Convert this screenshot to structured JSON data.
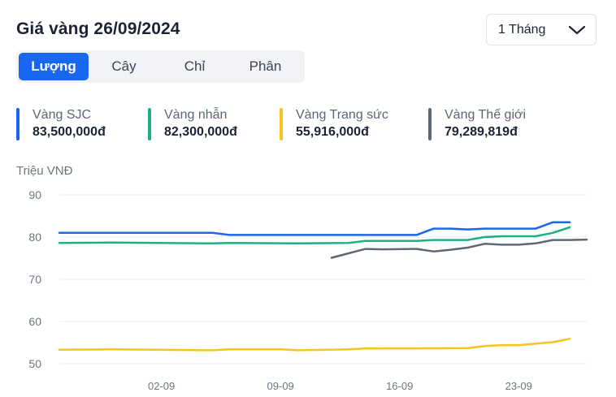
{
  "header": {
    "title": "Giá vàng 26/09/2024"
  },
  "period_select": {
    "value": "1 Tháng",
    "icon": "chevron-down-icon"
  },
  "tabs": [
    {
      "label": "Lượng",
      "active": true
    },
    {
      "label": "Cây",
      "active": false
    },
    {
      "label": "Chỉ",
      "active": false
    },
    {
      "label": "Phân",
      "active": false
    }
  ],
  "legend": [
    {
      "name": "Vàng SJC",
      "value": "83,500,000đ",
      "color": "#1967f0"
    },
    {
      "name": "Vàng nhẫn",
      "value": "82,300,000đ",
      "color": "#1cb37a"
    },
    {
      "name": "Vàng Trang sức",
      "value": "55,916,000đ",
      "color": "#f5c518"
    },
    {
      "name": "Vàng Thế giới",
      "value": "79,289,819đ",
      "color": "#5f6776"
    }
  ],
  "chart_data": {
    "type": "line",
    "ylabel": "Triệu VNĐ",
    "ylim": [
      50,
      90
    ],
    "yticks": [
      50,
      60,
      70,
      80,
      90
    ],
    "grid": "horizontal",
    "x_start": "2024-08-27",
    "x_end": "2024-09-27",
    "xticks": [
      {
        "date": "2024-09-02",
        "label": "02-09"
      },
      {
        "date": "2024-09-09",
        "label": "09-09"
      },
      {
        "date": "2024-09-16",
        "label": "16-09"
      },
      {
        "date": "2024-09-23",
        "label": "23-09"
      }
    ],
    "series": [
      {
        "name": "Vàng SJC",
        "color": "#1967f0",
        "points": [
          [
            "2024-08-27",
            81.0
          ],
          [
            "2024-09-05",
            81.0
          ],
          [
            "2024-09-06",
            80.5
          ],
          [
            "2024-09-17",
            80.5
          ],
          [
            "2024-09-18",
            82.0
          ],
          [
            "2024-09-19",
            82.0
          ],
          [
            "2024-09-20",
            81.8
          ],
          [
            "2024-09-21",
            82.0
          ],
          [
            "2024-09-24",
            82.0
          ],
          [
            "2024-09-25",
            83.5
          ],
          [
            "2024-09-26",
            83.5
          ]
        ]
      },
      {
        "name": "Vàng nhẫn",
        "color": "#1cb37a",
        "points": [
          [
            "2024-08-27",
            78.6
          ],
          [
            "2024-08-30",
            78.7
          ],
          [
            "2024-09-05",
            78.5
          ],
          [
            "2024-09-06",
            78.6
          ],
          [
            "2024-09-10",
            78.5
          ],
          [
            "2024-09-13",
            78.6
          ],
          [
            "2024-09-14",
            79.1
          ],
          [
            "2024-09-17",
            79.1
          ],
          [
            "2024-09-18",
            79.3
          ],
          [
            "2024-09-20",
            79.3
          ],
          [
            "2024-09-21",
            80.0
          ],
          [
            "2024-09-22",
            80.2
          ],
          [
            "2024-09-24",
            80.2
          ],
          [
            "2024-09-25",
            81.0
          ],
          [
            "2024-09-26",
            82.3
          ]
        ]
      },
      {
        "name": "Vàng Trang sức",
        "color": "#f5c518",
        "points": [
          [
            "2024-08-27",
            53.3
          ],
          [
            "2024-08-30",
            53.4
          ],
          [
            "2024-09-05",
            53.2
          ],
          [
            "2024-09-06",
            53.4
          ],
          [
            "2024-09-09",
            53.4
          ],
          [
            "2024-09-10",
            53.2
          ],
          [
            "2024-09-12",
            53.3
          ],
          [
            "2024-09-13",
            53.4
          ],
          [
            "2024-09-14",
            53.6
          ],
          [
            "2024-09-20",
            53.7
          ],
          [
            "2024-09-21",
            54.2
          ],
          [
            "2024-09-22",
            54.4
          ],
          [
            "2024-09-23",
            54.4
          ],
          [
            "2024-09-25",
            55.1
          ],
          [
            "2024-09-26",
            55.9
          ]
        ]
      },
      {
        "name": "Vàng Thế giới",
        "color": "#5f6776",
        "points": [
          [
            "2024-09-12",
            75.1
          ],
          [
            "2024-09-14",
            77.2
          ],
          [
            "2024-09-15",
            77.1
          ],
          [
            "2024-09-17",
            77.2
          ],
          [
            "2024-09-18",
            76.6
          ],
          [
            "2024-09-19",
            77.0
          ],
          [
            "2024-09-20",
            77.5
          ],
          [
            "2024-09-21",
            78.4
          ],
          [
            "2024-09-22",
            78.2
          ],
          [
            "2024-09-23",
            78.2
          ],
          [
            "2024-09-24",
            78.5
          ],
          [
            "2024-09-25",
            79.3
          ],
          [
            "2024-09-26",
            79.3
          ],
          [
            "2024-09-27",
            79.4
          ]
        ]
      }
    ]
  }
}
